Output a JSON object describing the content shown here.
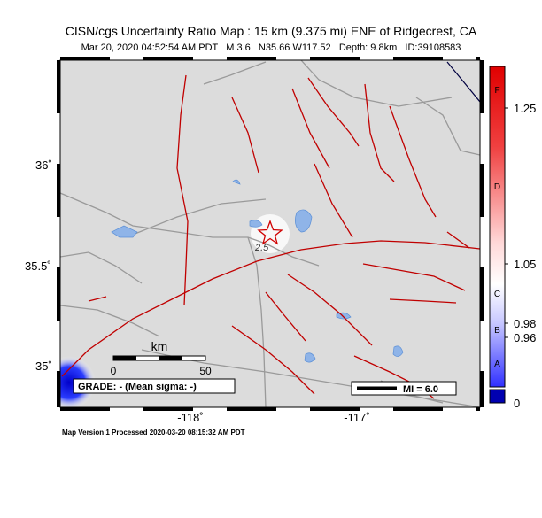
{
  "header": {
    "title": "CISN/cgs Uncertainty Ratio Map : 15 km (9.375 mi) ENE of Ridgecrest, CA",
    "subtitle": "Mar 20, 2020 04:52:54 AM PDT   M 3.6   N35.66 W117.52   Depth: 9.8km   ID:39108583"
  },
  "map": {
    "lat_labels": [
      "36˚",
      "35.5˚",
      "35˚"
    ],
    "lon_labels": [
      "-118˚",
      "-117˚"
    ],
    "contour_label": "2.5"
  },
  "scale_bar": {
    "unit": "km",
    "ticks": [
      "0",
      "50"
    ]
  },
  "grade_box": "GRADE: - (Mean sigma: -)",
  "mi_legend": "MI = 6.0",
  "colorbar": {
    "letters": [
      "F",
      "D",
      "C",
      "B",
      "A"
    ],
    "labels": [
      "1.25",
      "1.05",
      "0.98",
      "0.96",
      "0"
    ]
  },
  "footer": "Map Version 1 Processed 2020-03-20 08:15:32 AM PDT"
}
